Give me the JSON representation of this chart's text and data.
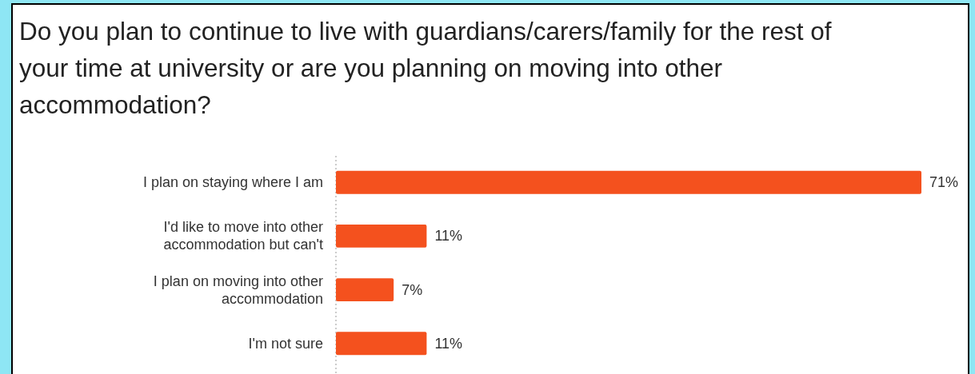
{
  "chart_data": {
    "type": "bar",
    "orientation": "horizontal",
    "title": "Do you plan to continue to live with guardians/carers/family for the rest of your time at university or are you planning on moving into other accommodation?",
    "categories": [
      "I plan on staying where I am",
      "I'd like to move into other accommodation but can't",
      "I plan on moving into other accommodation",
      "I'm not sure"
    ],
    "values": [
      71,
      11,
      7,
      11
    ],
    "color": "#f4511e",
    "data_labels": true,
    "value_labels": [
      "71%",
      "11%",
      "7%",
      "11%"
    ]
  }
}
